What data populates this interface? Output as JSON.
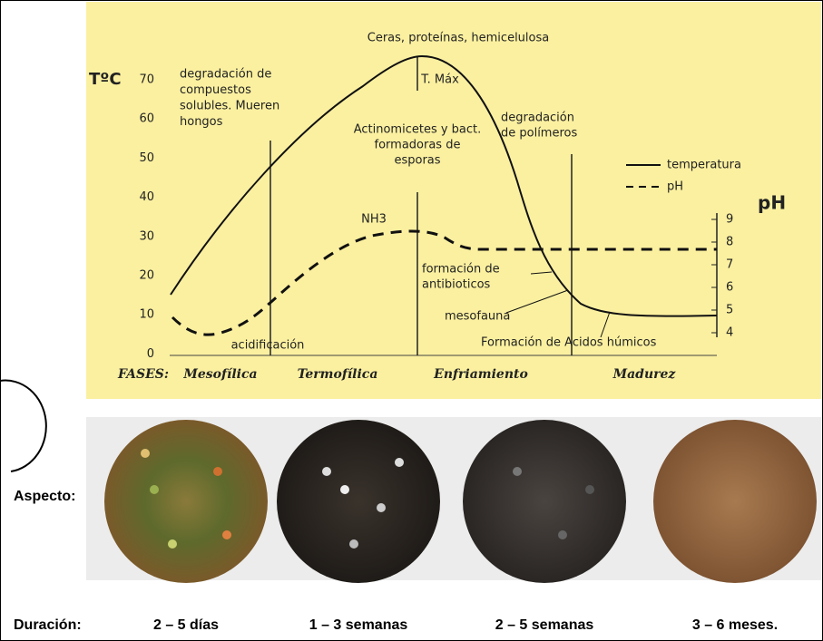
{
  "graph": {
    "top_note": "Ceras, proteínas, hemicelulosa",
    "peak_label": "T. Máx",
    "y_axis_label": "TºC",
    "y_ticks": [
      70,
      60,
      50,
      40,
      30,
      20,
      10,
      0
    ],
    "ph_axis_label": "pH",
    "ph_ticks": [
      9,
      8,
      7,
      6,
      5,
      4
    ],
    "legend": [
      "temperatura",
      "pH"
    ],
    "note_left": [
      "degradación de",
      "compuestos",
      "solubles. Mueren",
      "hongos"
    ],
    "note_center": [
      "Actinomicetes y bact.",
      "formadoras de",
      "esporas"
    ],
    "note_right": [
      "degradación",
      "de polímeros"
    ],
    "nh3": "NH3",
    "acidification": "acidificación",
    "antibiotics": [
      "formación de",
      "antibioticos"
    ],
    "mesofauna": "mesofauna",
    "humic": "Formación de Acidos húmicos",
    "phases_label": "FASES:",
    "phases": [
      "Mesofílica",
      "Termofílica",
      "Enfriamiento",
      "Madurez"
    ]
  },
  "aspect": {
    "label": "Aspecto:"
  },
  "duration": {
    "label": "Duración:",
    "values": [
      "2 – 5 días",
      "1 – 3 semanas",
      "2 – 5 semanas",
      "3 – 6 meses."
    ]
  }
}
